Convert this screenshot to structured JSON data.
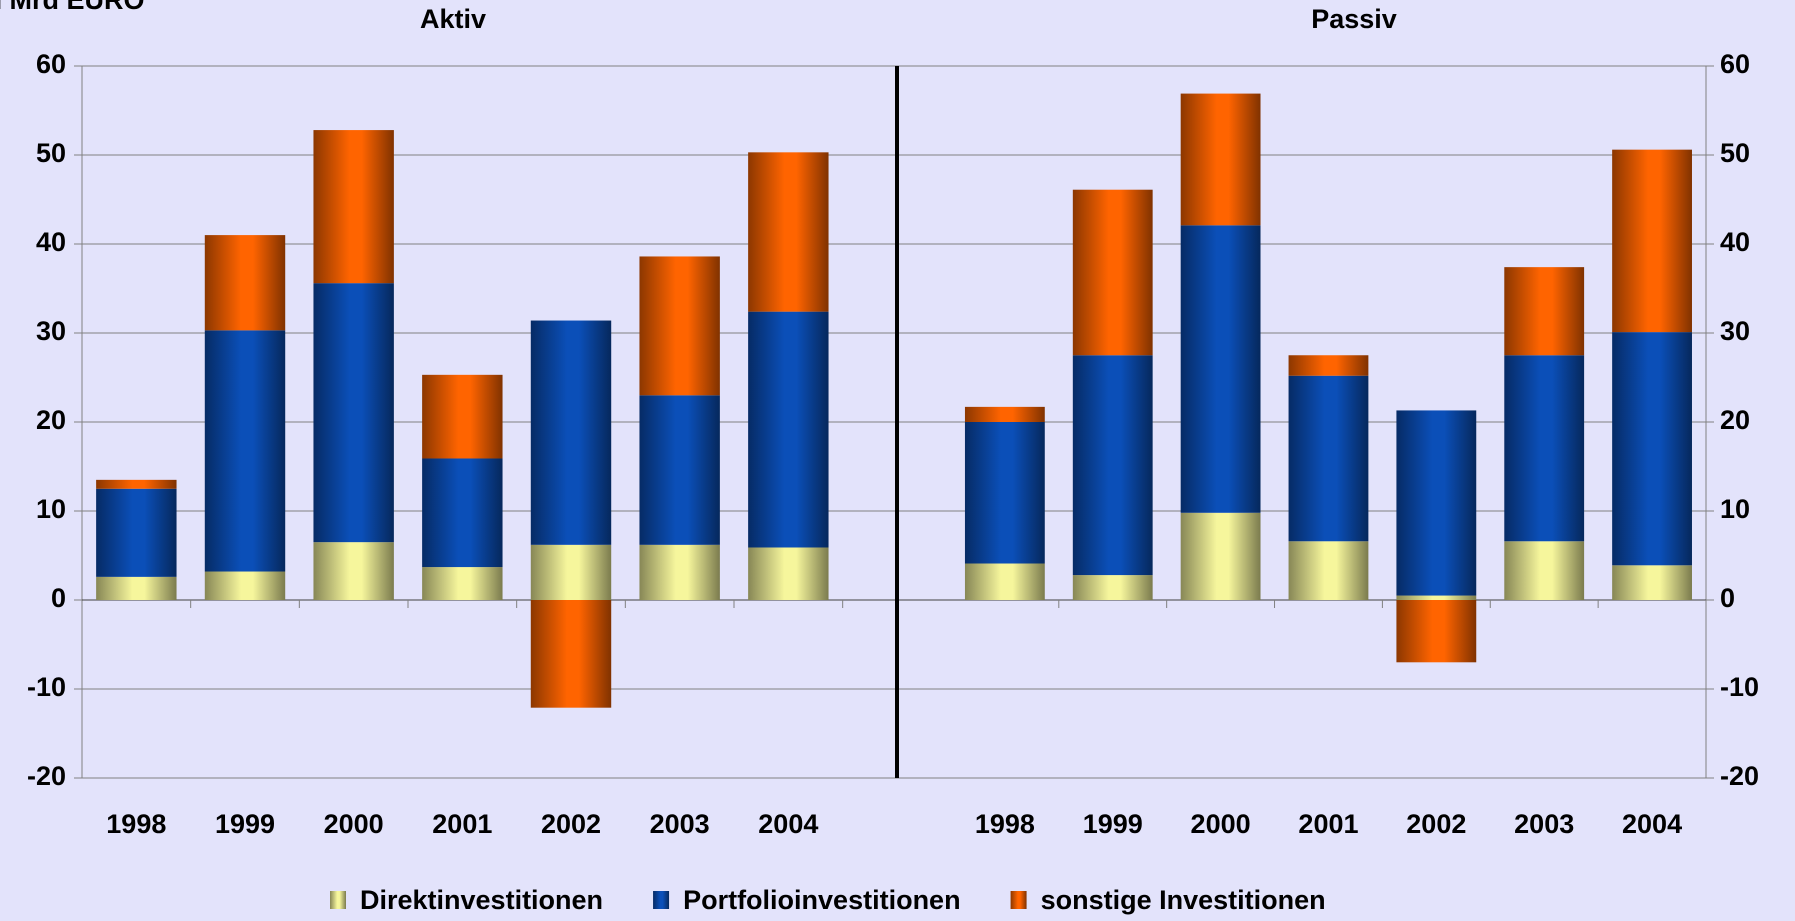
{
  "chart_data": [
    {
      "type": "bar",
      "stacked": true,
      "title": "Aktiv",
      "y_axis_label": "in Mrd EURO",
      "categories": [
        "1998",
        "1999",
        "2000",
        "2001",
        "2002",
        "2003",
        "2004"
      ],
      "series": [
        {
          "name": "Direktinvestitionen",
          "color": "#f6f69c",
          "values": [
            2.6,
            3.2,
            6.5,
            3.7,
            6.2,
            6.2,
            5.9
          ]
        },
        {
          "name": "Portfolioinvestitionen",
          "color": "#0b4fb8",
          "values": [
            9.9,
            27.1,
            29.1,
            12.2,
            25.2,
            16.8,
            26.5
          ]
        },
        {
          "name": "sonstige Investitionen",
          "color": "#ff6400",
          "values": [
            1.0,
            10.7,
            17.2,
            9.4,
            -12.1,
            15.6,
            17.9
          ]
        }
      ],
      "ylim": [
        -20,
        60
      ],
      "yticks": [
        -20,
        -10,
        0,
        10,
        20,
        30,
        40,
        50,
        60
      ],
      "grid": true
    },
    {
      "type": "bar",
      "stacked": true,
      "title": "Passiv",
      "categories": [
        "1998",
        "1999",
        "2000",
        "2001",
        "2002",
        "2003",
        "2004"
      ],
      "series": [
        {
          "name": "Direktinvestitionen",
          "color": "#f6f69c",
          "values": [
            4.1,
            2.8,
            9.8,
            6.6,
            0.5,
            6.6,
            3.9
          ]
        },
        {
          "name": "Portfolioinvestitionen",
          "color": "#0b4fb8",
          "values": [
            15.9,
            24.7,
            32.3,
            18.6,
            20.8,
            20.9,
            26.2
          ]
        },
        {
          "name": "sonstige Investitionen",
          "color": "#ff6400",
          "values": [
            1.7,
            18.6,
            14.8,
            2.3,
            -7.0,
            9.9,
            20.5
          ]
        }
      ],
      "ylim": [
        -20,
        60
      ],
      "yticks": [
        -20,
        -10,
        0,
        10,
        20,
        30,
        40,
        50,
        60
      ],
      "grid": true
    }
  ]
}
